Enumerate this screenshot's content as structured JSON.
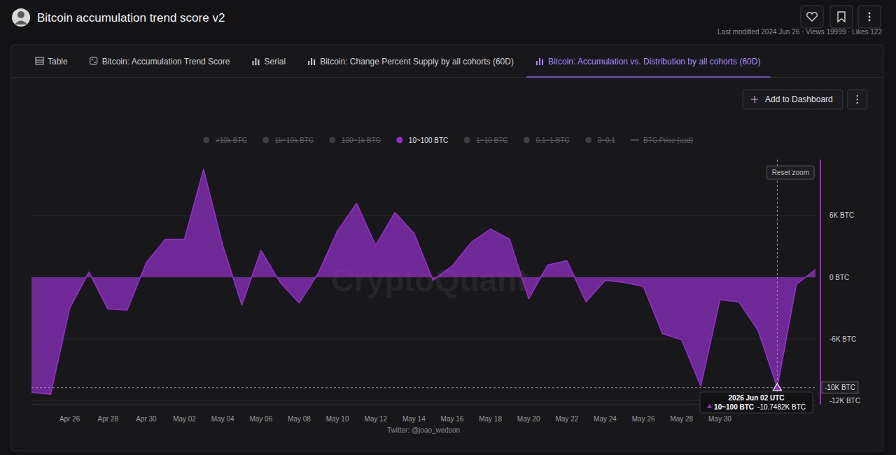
{
  "header": {
    "title": "Bitcoin accumulation trend score v2",
    "meta": "Last modified 2024 Jun 26 · Views 19999 · Likes 122"
  },
  "tabs": {
    "items": [
      "Table",
      "Bitcoin: Accumulation Trend Score",
      "Serial",
      "Bitcoin: Change Percent Supply by all cohorts (60D)",
      "Bitcoin: Accumulation vs. Distribution by all cohorts (60D)"
    ],
    "active": 4
  },
  "toolbar": {
    "button": "Add to Dashboard"
  },
  "chart_data": {
    "type": "area",
    "categories": [
      null,
      null,
      "Apr 26",
      null,
      "Apr 28",
      null,
      "Apr 30",
      null,
      "May 02",
      null,
      "May 04",
      null,
      "May 06",
      null,
      "May 08",
      null,
      "May 10",
      null,
      "May 12",
      null,
      "May 14",
      null,
      "May 16",
      null,
      "May 18",
      null,
      "May 20",
      null,
      "May 22",
      null,
      "May 24",
      null,
      "May 26",
      null,
      "May 28",
      null,
      "May 30",
      null,
      null,
      null,
      null,
      null
    ],
    "series": [
      {
        "name": "10~100 BTC",
        "color": "#9230c8",
        "values": [
          -11200,
          -11400,
          -3000,
          500,
          -3100,
          -3200,
          1400,
          3700,
          3700,
          10500,
          3100,
          -2700,
          2600,
          -500,
          -2500,
          400,
          4500,
          7200,
          3100,
          6300,
          4300,
          -300,
          1100,
          3400,
          4700,
          3700,
          -2100,
          1200,
          1600,
          -2400,
          -300,
          -500,
          -900,
          -5500,
          -6100,
          -10600,
          -2200,
          -2400,
          -5200,
          -10748.2,
          -700,
          750
        ]
      }
    ],
    "legend_before": [
      {
        "name": ">10k BTC"
      },
      {
        "name": "1k~10k BTC"
      },
      {
        "name": "100~1k BTC"
      }
    ],
    "legend_after": [
      {
        "name": "1~10 BTC"
      },
      {
        "name": "0.1~1 BTC"
      },
      {
        "name": "0~0.1"
      },
      {
        "name": "BTC Price (usd)",
        "marker": "line"
      }
    ],
    "ylim": [
      -12400,
      11450
    ],
    "yticks": [
      {
        "value": -12000,
        "label": "-12K BTC"
      },
      {
        "value": -6000,
        "label": "-6K BTC"
      },
      {
        "value": 0,
        "label": "0 BTC"
      },
      {
        "value": 6000,
        "label": "6K BTC"
      }
    ],
    "grid": true,
    "legend": "top",
    "reset_zoom": "Reset zoom",
    "crosshair_label": "-10K BTC",
    "tooltip": {
      "date": "2026 Jun 02 UTC",
      "value": -10748.2,
      "value_label": "-10.7482K BTC"
    },
    "watermark": "CryptoQuant",
    "credit": "Twitter: @joao_wedson"
  }
}
